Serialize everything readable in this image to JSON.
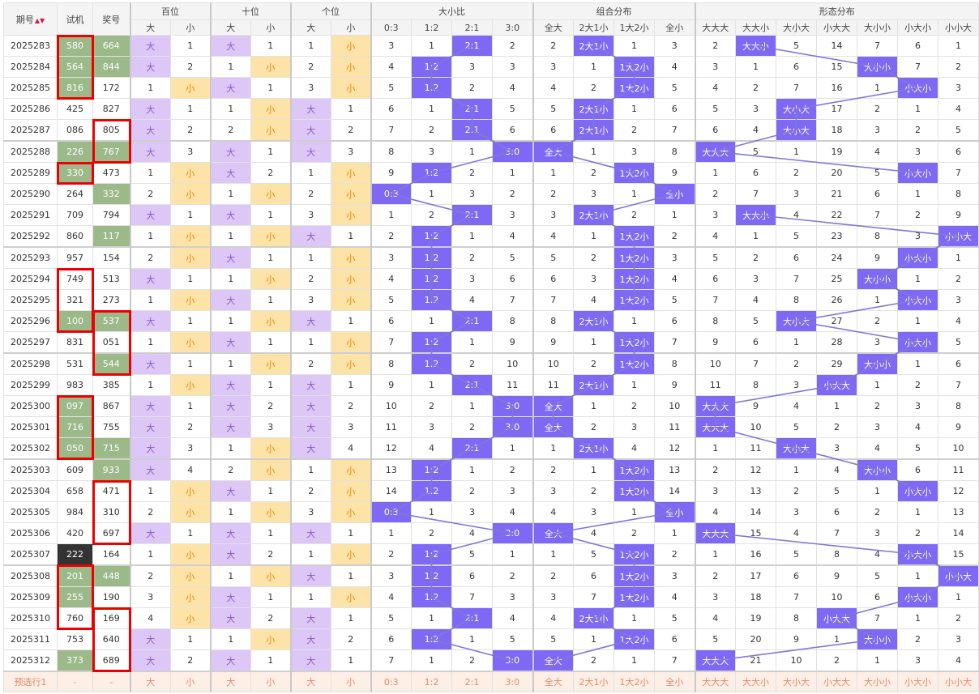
{
  "header": {
    "col_period": "期号",
    "col_trial": "试机",
    "col_prize": "奖号",
    "groups": [
      "百位",
      "十位",
      "个位",
      "大小比",
      "组合分布",
      "形态分布"
    ],
    "big": "大",
    "small": "小",
    "ratio_cols": [
      "0:3",
      "1:2",
      "2:1",
      "3:0"
    ],
    "combo_cols": [
      "全大",
      "2大1小",
      "1大2小",
      "全小"
    ],
    "form_cols": [
      "大大大",
      "大大小",
      "大小大",
      "小大大",
      "大小小",
      "小大小",
      "小小大"
    ]
  },
  "colors": {
    "purple_bg": "#dcc7f7",
    "yellow_bg": "#fde3a7",
    "blue_hit": "#7f69f4",
    "trial_green": "#9cb98a",
    "red_box": "#ee0000",
    "footer_bg": "#fdeee6"
  },
  "rows": [
    {
      "p": "2025283",
      "t": "580",
      "z": "664",
      "bai": [
        "大",
        1
      ],
      "shi": [
        "大",
        1
      ],
      "ge": [
        1,
        "小"
      ],
      "r": [
        3,
        1,
        "2:1",
        2
      ],
      "c": [
        2,
        "2大1小",
        1,
        3
      ],
      "f": [
        2,
        "大大小",
        5,
        14,
        7,
        6,
        1
      ]
    },
    {
      "p": "2025284",
      "t": "564",
      "z": "844",
      "bai": [
        "大",
        2
      ],
      "shi": [
        1,
        "小"
      ],
      "ge": [
        2,
        "小"
      ],
      "r": [
        4,
        "1:2",
        3,
        3
      ],
      "c": [
        3,
        1,
        "1大2小",
        4
      ],
      "f": [
        3,
        1,
        6,
        15,
        "大小小",
        7,
        2
      ]
    },
    {
      "p": "2025285",
      "t": "816",
      "z": "172",
      "bai": [
        1,
        "小"
      ],
      "shi": [
        "大",
        1
      ],
      "ge": [
        3,
        "小"
      ],
      "r": [
        5,
        "1:2",
        2,
        4
      ],
      "c": [
        4,
        2,
        "1大2小",
        5
      ],
      "f": [
        4,
        2,
        7,
        16,
        1,
        "小大小",
        3
      ]
    },
    {
      "p": "2025286",
      "t": "425",
      "z": "827",
      "bai": [
        "大",
        1
      ],
      "shi": [
        1,
        "小"
      ],
      "ge": [
        "大",
        1
      ],
      "r": [
        6,
        1,
        "2:1",
        5
      ],
      "c": [
        5,
        "2大1小",
        1,
        6
      ],
      "f": [
        5,
        3,
        "大小大",
        17,
        2,
        1,
        4
      ]
    },
    {
      "p": "2025287",
      "t": "086",
      "z": "805",
      "bai": [
        "大",
        2
      ],
      "shi": [
        2,
        "小"
      ],
      "ge": [
        "大",
        2
      ],
      "r": [
        7,
        2,
        "2:1",
        6
      ],
      "c": [
        6,
        "2大1小",
        2,
        7
      ],
      "f": [
        6,
        4,
        "大小大",
        18,
        3,
        2,
        5
      ]
    },
    {
      "p": "2025288",
      "t": "226",
      "z": "767",
      "bai": [
        "大",
        3
      ],
      "shi": [
        "大",
        1
      ],
      "ge": [
        "大",
        3
      ],
      "r": [
        8,
        3,
        1,
        "3:0"
      ],
      "c": [
        "全大",
        1,
        3,
        8
      ],
      "f": [
        "大大大",
        5,
        1,
        19,
        4,
        3,
        6
      ]
    },
    {
      "p": "2025289",
      "t": "330",
      "z": "473",
      "bai": [
        1,
        "小"
      ],
      "shi": [
        "大",
        2
      ],
      "ge": [
        1,
        "小"
      ],
      "r": [
        9,
        "1:2",
        2,
        1
      ],
      "c": [
        1,
        2,
        "1大2小",
        9
      ],
      "f": [
        1,
        6,
        2,
        20,
        5,
        "小大小",
        7
      ]
    },
    {
      "p": "2025290",
      "t": "264",
      "z": "332",
      "bai": [
        2,
        "小"
      ],
      "shi": [
        1,
        "小"
      ],
      "ge": [
        2,
        "小"
      ],
      "r": [
        "0:3",
        1,
        3,
        2
      ],
      "c": [
        2,
        3,
        1,
        "全小"
      ],
      "f": [
        2,
        7,
        3,
        21,
        6,
        1,
        8
      ]
    },
    {
      "p": "2025291",
      "t": "709",
      "z": "794",
      "bai": [
        "大",
        1
      ],
      "shi": [
        "大",
        1
      ],
      "ge": [
        3,
        "小"
      ],
      "r": [
        1,
        2,
        "2:1",
        3
      ],
      "c": [
        3,
        "2大1小",
        2,
        1
      ],
      "f": [
        3,
        "大大小",
        4,
        22,
        7,
        2,
        9
      ]
    },
    {
      "p": "2025292",
      "t": "860",
      "z": "117",
      "bai": [
        1,
        "小"
      ],
      "shi": [
        1,
        "小"
      ],
      "ge": [
        "大",
        1
      ],
      "r": [
        2,
        "1:2",
        1,
        4
      ],
      "c": [
        4,
        1,
        "1大2小",
        2
      ],
      "f": [
        4,
        1,
        5,
        23,
        8,
        3,
        "小小大"
      ]
    },
    {
      "p": "2025293",
      "t": "957",
      "z": "154",
      "bai": [
        2,
        "小"
      ],
      "shi": [
        "大",
        1
      ],
      "ge": [
        1,
        "小"
      ],
      "r": [
        3,
        "1:2",
        2,
        5
      ],
      "c": [
        5,
        2,
        "1大2小",
        3
      ],
      "f": [
        5,
        2,
        6,
        24,
        9,
        "小大小",
        1
      ]
    },
    {
      "p": "2025294",
      "t": "749",
      "z": "513",
      "bai": [
        "大",
        1
      ],
      "shi": [
        1,
        "小"
      ],
      "ge": [
        2,
        "小"
      ],
      "r": [
        4,
        "1:2",
        3,
        6
      ],
      "c": [
        6,
        3,
        "1大2小",
        4
      ],
      "f": [
        6,
        3,
        7,
        25,
        "大小小",
        1,
        2
      ]
    },
    {
      "p": "2025295",
      "t": "321",
      "z": "273",
      "bai": [
        1,
        "小"
      ],
      "shi": [
        "大",
        1
      ],
      "ge": [
        3,
        "小"
      ],
      "r": [
        5,
        "1:2",
        4,
        7
      ],
      "c": [
        7,
        4,
        "1大2小",
        5
      ],
      "f": [
        7,
        4,
        8,
        26,
        1,
        "小大小",
        3
      ]
    },
    {
      "p": "2025296",
      "t": "100",
      "z": "537",
      "bai": [
        "大",
        1
      ],
      "shi": [
        1,
        "小"
      ],
      "ge": [
        "大",
        1
      ],
      "r": [
        6,
        1,
        "2:1",
        8
      ],
      "c": [
        8,
        "2大1小",
        1,
        6
      ],
      "f": [
        8,
        5,
        "大小大",
        27,
        2,
        1,
        4
      ]
    },
    {
      "p": "2025297",
      "t": "831",
      "z": "051",
      "bai": [
        1,
        "小"
      ],
      "shi": [
        "大",
        1
      ],
      "ge": [
        1,
        "小"
      ],
      "r": [
        7,
        "1:2",
        1,
        9
      ],
      "c": [
        9,
        1,
        "1大2小",
        7
      ],
      "f": [
        9,
        6,
        1,
        28,
        3,
        "小大小",
        5
      ]
    },
    {
      "p": "2025298",
      "t": "531",
      "z": "544",
      "bai": [
        "大",
        1
      ],
      "shi": [
        1,
        "小"
      ],
      "ge": [
        2,
        "小"
      ],
      "r": [
        8,
        "1:2",
        2,
        10
      ],
      "c": [
        10,
        2,
        "1大2小",
        8
      ],
      "f": [
        10,
        7,
        2,
        29,
        "大小小",
        1,
        6
      ]
    },
    {
      "p": "2025299",
      "t": "983",
      "z": "385",
      "bai": [
        1,
        "小"
      ],
      "shi": [
        "大",
        1
      ],
      "ge": [
        "大",
        1
      ],
      "r": [
        9,
        1,
        "2:1",
        11
      ],
      "c": [
        11,
        "2大1小",
        1,
        9
      ],
      "f": [
        11,
        8,
        3,
        "小大大",
        1,
        2,
        7
      ]
    },
    {
      "p": "2025300",
      "t": "097",
      "z": "867",
      "bai": [
        "大",
        1
      ],
      "shi": [
        "大",
        2
      ],
      "ge": [
        "大",
        2
      ],
      "r": [
        10,
        2,
        1,
        "3:0"
      ],
      "c": [
        "全大",
        1,
        2,
        10
      ],
      "f": [
        "大大大",
        9,
        4,
        1,
        2,
        3,
        8
      ]
    },
    {
      "p": "2025301",
      "t": "716",
      "z": "755",
      "bai": [
        "大",
        2
      ],
      "shi": [
        "大",
        3
      ],
      "ge": [
        "大",
        3
      ],
      "r": [
        11,
        3,
        2,
        "3:0"
      ],
      "c": [
        "全大",
        2,
        3,
        11
      ],
      "f": [
        "大大大",
        10,
        5,
        2,
        3,
        4,
        9
      ]
    },
    {
      "p": "2025302",
      "t": "050",
      "z": "715",
      "bai": [
        "大",
        3
      ],
      "shi": [
        1,
        "小"
      ],
      "ge": [
        "大",
        4
      ],
      "r": [
        12,
        4,
        "2:1",
        1
      ],
      "c": [
        1,
        "2大1小",
        4,
        12
      ],
      "f": [
        1,
        11,
        "大小大",
        3,
        4,
        5,
        10
      ]
    },
    {
      "p": "2025303",
      "t": "609",
      "z": "933",
      "bai": [
        "大",
        4
      ],
      "shi": [
        2,
        "小"
      ],
      "ge": [
        1,
        "小"
      ],
      "r": [
        13,
        "1:2",
        1,
        2
      ],
      "c": [
        2,
        1,
        "1大2小",
        13
      ],
      "f": [
        2,
        12,
        1,
        4,
        "大小小",
        6,
        11
      ]
    },
    {
      "p": "2025304",
      "t": "658",
      "z": "471",
      "bai": [
        1,
        "小"
      ],
      "shi": [
        "大",
        1
      ],
      "ge": [
        2,
        "小"
      ],
      "r": [
        14,
        "1:2",
        2,
        3
      ],
      "c": [
        3,
        2,
        "1大2小",
        14
      ],
      "f": [
        3,
        13,
        2,
        5,
        1,
        "小大小",
        12
      ]
    },
    {
      "p": "2025305",
      "t": "984",
      "z": "310",
      "bai": [
        2,
        "小"
      ],
      "shi": [
        1,
        "小"
      ],
      "ge": [
        3,
        "小"
      ],
      "r": [
        "0:3",
        1,
        3,
        4
      ],
      "c": [
        4,
        3,
        1,
        "全小"
      ],
      "f": [
        4,
        14,
        3,
        6,
        2,
        1,
        13
      ]
    },
    {
      "p": "2025306",
      "t": "420",
      "z": "697",
      "bai": [
        "大",
        1
      ],
      "shi": [
        "大",
        1
      ],
      "ge": [
        "大",
        1
      ],
      "r": [
        1,
        2,
        4,
        "3:0"
      ],
      "c": [
        "全大",
        4,
        2,
        1
      ],
      "f": [
        "大大大",
        15,
        4,
        7,
        3,
        2,
        14
      ]
    },
    {
      "p": "2025307",
      "t": "222",
      "z": "164",
      "bai": [
        1,
        "小"
      ],
      "shi": [
        "大",
        2
      ],
      "ge": [
        1,
        "小"
      ],
      "r": [
        2,
        "1:2",
        5,
        1
      ],
      "c": [
        1,
        5,
        "1大2小",
        2
      ],
      "f": [
        1,
        16,
        5,
        8,
        4,
        "小大小",
        15
      ]
    },
    {
      "p": "2025308",
      "t": "201",
      "z": "448",
      "bai": [
        2,
        "小"
      ],
      "shi": [
        1,
        "小"
      ],
      "ge": [
        "大",
        1
      ],
      "r": [
        3,
        "1:2",
        6,
        2
      ],
      "c": [
        2,
        6,
        "1大2小",
        3
      ],
      "f": [
        2,
        17,
        6,
        9,
        5,
        1,
        "小小大"
      ]
    },
    {
      "p": "2025309",
      "t": "255",
      "z": "190",
      "bai": [
        3,
        "小"
      ],
      "shi": [
        "大",
        1
      ],
      "ge": [
        1,
        "小"
      ],
      "r": [
        4,
        "1:2",
        7,
        3
      ],
      "c": [
        3,
        7,
        "1大2小",
        4
      ],
      "f": [
        3,
        18,
        7,
        10,
        6,
        "小大小",
        1
      ]
    },
    {
      "p": "2025310",
      "t": "760",
      "z": "169",
      "bai": [
        4,
        "小"
      ],
      "shi": [
        "大",
        2
      ],
      "ge": [
        "大",
        1
      ],
      "r": [
        5,
        1,
        "2:1",
        4
      ],
      "c": [
        4,
        "2大1小",
        1,
        5
      ],
      "f": [
        4,
        19,
        8,
        "小大大",
        7,
        1,
        2
      ]
    },
    {
      "p": "2025311",
      "t": "753",
      "z": "640",
      "bai": [
        "大",
        1
      ],
      "shi": [
        1,
        "小"
      ],
      "ge": [
        "大",
        2
      ],
      "r": [
        6,
        "1:2",
        1,
        5
      ],
      "c": [
        5,
        1,
        "1大2小",
        6
      ],
      "f": [
        5,
        20,
        9,
        1,
        "大小小",
        2,
        3
      ]
    },
    {
      "p": "2025312",
      "t": "373",
      "z": "689",
      "bai": [
        "大",
        2
      ],
      "shi": [
        "大",
        1
      ],
      "ge": [
        "大",
        1
      ],
      "r": [
        7,
        1,
        2,
        "3:0"
      ],
      "c": [
        "全大",
        2,
        1,
        7
      ],
      "f": [
        "大大大",
        21,
        10,
        2,
        1,
        3,
        4
      ]
    }
  ],
  "green_trial": [
    0,
    1,
    2,
    5,
    6,
    13,
    17,
    18,
    19,
    25,
    26,
    29
  ],
  "dark_trial": [
    24
  ],
  "green_prize": [
    0,
    1,
    5,
    7,
    9,
    13,
    15,
    19,
    20,
    25
  ],
  "footer": {
    "label": "预选行1",
    "dash": "-",
    "cells": [
      "大",
      "小",
      "大",
      "小",
      "大",
      "小",
      "0:3",
      "1:2",
      "2:1",
      "3:0",
      "全大",
      "2大1小",
      "1大2小",
      "全小",
      "大大大",
      "大大小",
      "大小大",
      "小大大",
      "大小小",
      "小大小",
      "小小大"
    ]
  }
}
